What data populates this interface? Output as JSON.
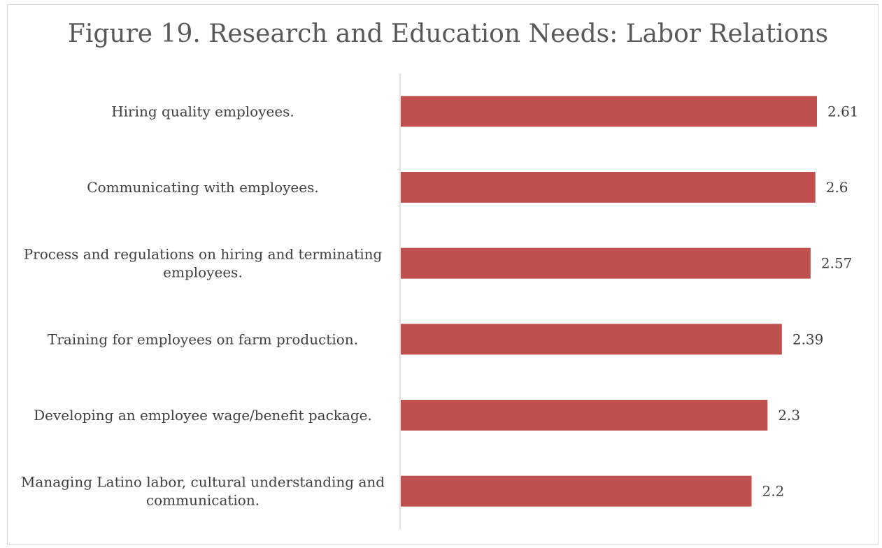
{
  "chart_data": {
    "type": "bar",
    "orientation": "horizontal",
    "title": "Figure 19. Research and Education Needs: Labor Relations",
    "categories": [
      [
        "Hiring quality employees."
      ],
      [
        "Communicating with employees."
      ],
      [
        "Process and regulations on hiring and terminating",
        "employees."
      ],
      [
        "Training for employees on farm production."
      ],
      [
        "Developing an employee wage/benefit package."
      ],
      [
        "Managing Latino labor, cultural understanding and",
        "communication."
      ]
    ],
    "values": [
      2.61,
      2.6,
      2.57,
      2.39,
      2.3,
      2.2
    ],
    "data_labels": [
      "2.61",
      "2.6",
      "2.57",
      "2.39",
      "2.3",
      "2.2"
    ],
    "xlim": [
      0,
      2.7
    ],
    "grid": false,
    "legend": "none",
    "colors": {
      "bar": "#c0504d",
      "axis": "#d9d9d9",
      "text": "#404040",
      "title": "#595959"
    }
  }
}
